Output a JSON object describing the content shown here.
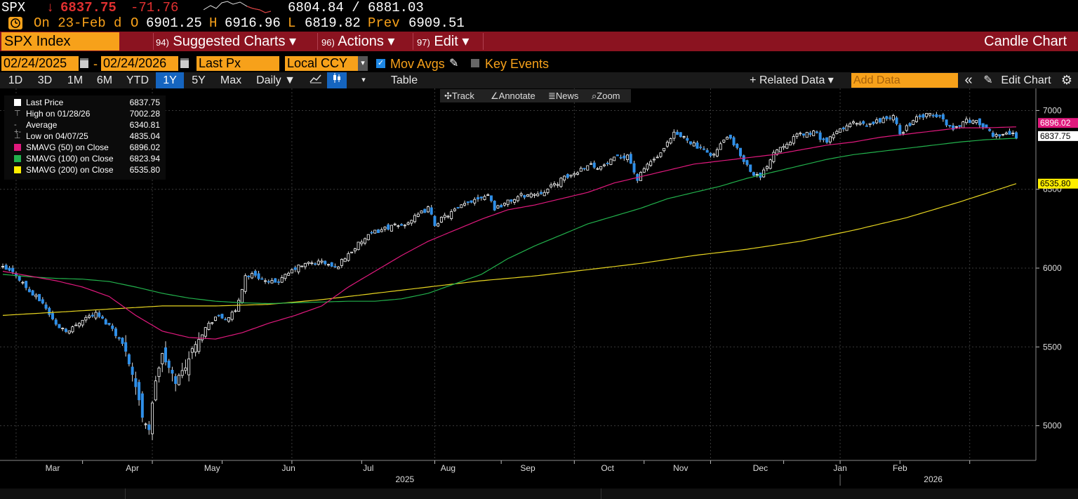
{
  "quote": {
    "ticker": "SPX",
    "last": "6837.75",
    "arrow": "↓",
    "change": "-71.76",
    "bid_ask": "6804.84 / 6881.03",
    "date_text": "On 23-Feb d",
    "open_label": "O",
    "open": "6901.25",
    "high_label": "H",
    "high": "6916.96",
    "low_label": "L",
    "low": "6819.82",
    "prev_label": "Prev",
    "prev": "6909.51"
  },
  "menubar": {
    "security": "SPX Index",
    "items": [
      {
        "num": "94)",
        "label": "Suggested Charts ▾"
      },
      {
        "num": "96)",
        "label": "Actions ▾"
      },
      {
        "num": "97)",
        "label": "Edit ▾"
      }
    ],
    "right_title": "Candle Chart"
  },
  "controls": {
    "start_date": "02/24/2025",
    "end_date": "02/24/2026",
    "dash": "-",
    "field": "Last Px",
    "currency": "Local CCY",
    "mov_avgs_label": "Mov Avgs",
    "key_events_label": "Key Events"
  },
  "toolbar": {
    "periods": [
      "1D",
      "3D",
      "1M",
      "6M",
      "YTD",
      "1Y",
      "5Y",
      "Max"
    ],
    "selected_period": "1Y",
    "frequency": "Daily ▼",
    "table_label": "Table",
    "related_data": "+ Related Data ▾",
    "add_data_placeholder": "Add Data",
    "collapse": "«",
    "edit_chart": "Edit Chart"
  },
  "chart_tools": [
    "Track",
    "Annotate",
    "News",
    "Zoom"
  ],
  "legend": [
    {
      "label": "Last Price",
      "value": "6837.75",
      "color": "#ffffff"
    },
    {
      "label": "High on 01/28/26",
      "value": "7002.28",
      "color": ""
    },
    {
      "label": "Average",
      "value": "6340.81",
      "color": ""
    },
    {
      "label": "Low on 04/07/25",
      "value": "4835.04",
      "color": ""
    },
    {
      "label": "SMAVG (50)  on Close",
      "value": "6896.02",
      "color": "#e0197d"
    },
    {
      "label": "SMAVG (100)  on Close",
      "value": "6823.94",
      "color": "#22b14c"
    },
    {
      "label": "SMAVG (200)  on Close",
      "value": "6535.80",
      "color": "#ffee00"
    }
  ],
  "chart_data": {
    "type": "candlestick",
    "y_ticks": [
      5000,
      5500,
      6000,
      6500,
      7000
    ],
    "ylim": [
      4780,
      7140
    ],
    "month_labels": [
      "Mar",
      "Apr",
      "May",
      "Jun",
      "Jul",
      "Aug",
      "Sep",
      "Oct",
      "Nov",
      "Dec",
      "Jan",
      "Feb"
    ],
    "year_labels": [
      "2025",
      "2026"
    ],
    "last_price_tag": "6837.75",
    "sma50_tag": "6896.02",
    "sma200_tag": "6535.80",
    "close_path": [
      [
        0,
        6000
      ],
      [
        4,
        5960
      ],
      [
        8,
        5850
      ],
      [
        12,
        5780
      ],
      [
        16,
        5640
      ],
      [
        20,
        5600
      ],
      [
        24,
        5680
      ],
      [
        28,
        5710
      ],
      [
        33,
        5620
      ],
      [
        37,
        5480
      ],
      [
        40,
        5250
      ],
      [
        42,
        5060
      ],
      [
        44,
        4980
      ],
      [
        46,
        5290
      ],
      [
        48,
        5450
      ],
      [
        52,
        5280
      ],
      [
        55,
        5380
      ],
      [
        58,
        5530
      ],
      [
        61,
        5620
      ],
      [
        64,
        5690
      ],
      [
        67,
        5680
      ],
      [
        70,
        5720
      ],
      [
        73,
        5950
      ],
      [
        76,
        5960
      ],
      [
        80,
        5900
      ],
      [
        84,
        5930
      ],
      [
        88,
        6000
      ],
      [
        92,
        6030
      ],
      [
        96,
        6040
      ],
      [
        100,
        6000
      ],
      [
        104,
        6090
      ],
      [
        108,
        6170
      ],
      [
        112,
        6230
      ],
      [
        116,
        6260
      ],
      [
        120,
        6270
      ],
      [
        124,
        6320
      ],
      [
        128,
        6380
      ],
      [
        130,
        6280
      ],
      [
        134,
        6340
      ],
      [
        138,
        6390
      ],
      [
        142,
        6440
      ],
      [
        146,
        6470
      ],
      [
        148,
        6380
      ],
      [
        152,
        6420
      ],
      [
        156,
        6460
      ],
      [
        160,
        6470
      ],
      [
        164,
        6500
      ],
      [
        168,
        6560
      ],
      [
        172,
        6600
      ],
      [
        176,
        6660
      ],
      [
        180,
        6640
      ],
      [
        184,
        6690
      ],
      [
        188,
        6720
      ],
      [
        191,
        6560
      ],
      [
        194,
        6660
      ],
      [
        198,
        6720
      ],
      [
        202,
        6850
      ],
      [
        206,
        6820
      ],
      [
        210,
        6750
      ],
      [
        214,
        6720
      ],
      [
        218,
        6840
      ],
      [
        222,
        6720
      ],
      [
        225,
        6620
      ],
      [
        228,
        6570
      ],
      [
        232,
        6740
      ],
      [
        236,
        6800
      ],
      [
        240,
        6850
      ],
      [
        244,
        6860
      ],
      [
        248,
        6800
      ],
      [
        252,
        6880
      ],
      [
        256,
        6920
      ],
      [
        260,
        6900
      ],
      [
        264,
        6940
      ],
      [
        268,
        6960
      ],
      [
        270,
        6850
      ],
      [
        274,
        6940
      ],
      [
        278,
        6970
      ],
      [
        282,
        6960
      ],
      [
        286,
        6880
      ],
      [
        290,
        6940
      ],
      [
        294,
        6920
      ],
      [
        298,
        6840
      ],
      [
        302,
        6860
      ],
      [
        305,
        6837.75
      ]
    ],
    "sma50_path": [
      [
        0,
        5980
      ],
      [
        8,
        5950
      ],
      [
        16,
        5920
      ],
      [
        24,
        5880
      ],
      [
        32,
        5820
      ],
      [
        40,
        5700
      ],
      [
        48,
        5600
      ],
      [
        56,
        5560
      ],
      [
        64,
        5550
      ],
      [
        72,
        5590
      ],
      [
        80,
        5650
      ],
      [
        88,
        5700
      ],
      [
        96,
        5760
      ],
      [
        104,
        5880
      ],
      [
        112,
        5980
      ],
      [
        120,
        6080
      ],
      [
        128,
        6170
      ],
      [
        136,
        6240
      ],
      [
        144,
        6310
      ],
      [
        152,
        6370
      ],
      [
        160,
        6400
      ],
      [
        168,
        6440
      ],
      [
        176,
        6480
      ],
      [
        184,
        6540
      ],
      [
        192,
        6580
      ],
      [
        200,
        6620
      ],
      [
        208,
        6660
      ],
      [
        216,
        6680
      ],
      [
        224,
        6700
      ],
      [
        232,
        6720
      ],
      [
        240,
        6750
      ],
      [
        248,
        6780
      ],
      [
        256,
        6800
      ],
      [
        264,
        6830
      ],
      [
        272,
        6850
      ],
      [
        280,
        6870
      ],
      [
        288,
        6890
      ],
      [
        296,
        6890
      ],
      [
        305,
        6896.02
      ]
    ],
    "sma100_path": [
      [
        0,
        5960
      ],
      [
        8,
        5945
      ],
      [
        16,
        5935
      ],
      [
        24,
        5930
      ],
      [
        32,
        5915
      ],
      [
        40,
        5880
      ],
      [
        48,
        5840
      ],
      [
        56,
        5810
      ],
      [
        64,
        5790
      ],
      [
        72,
        5780
      ],
      [
        80,
        5775
      ],
      [
        88,
        5780
      ],
      [
        96,
        5785
      ],
      [
        104,
        5790
      ],
      [
        112,
        5790
      ],
      [
        120,
        5805
      ],
      [
        128,
        5840
      ],
      [
        136,
        5900
      ],
      [
        144,
        5960
      ],
      [
        152,
        6060
      ],
      [
        160,
        6140
      ],
      [
        168,
        6210
      ],
      [
        176,
        6280
      ],
      [
        184,
        6330
      ],
      [
        192,
        6380
      ],
      [
        200,
        6440
      ],
      [
        208,
        6480
      ],
      [
        216,
        6520
      ],
      [
        224,
        6570
      ],
      [
        232,
        6610
      ],
      [
        240,
        6650
      ],
      [
        248,
        6690
      ],
      [
        256,
        6720
      ],
      [
        264,
        6740
      ],
      [
        272,
        6760
      ],
      [
        280,
        6780
      ],
      [
        288,
        6800
      ],
      [
        296,
        6815
      ],
      [
        305,
        6823.94
      ]
    ],
    "sma200_path": [
      [
        0,
        5700
      ],
      [
        16,
        5720
      ],
      [
        32,
        5740
      ],
      [
        48,
        5760
      ],
      [
        64,
        5760
      ],
      [
        80,
        5770
      ],
      [
        96,
        5800
      ],
      [
        112,
        5840
      ],
      [
        128,
        5880
      ],
      [
        144,
        5920
      ],
      [
        160,
        5950
      ],
      [
        176,
        5990
      ],
      [
        192,
        6030
      ],
      [
        208,
        6080
      ],
      [
        224,
        6120
      ],
      [
        240,
        6170
      ],
      [
        256,
        6240
      ],
      [
        272,
        6320
      ],
      [
        288,
        6420
      ],
      [
        305,
        6535.8
      ]
    ]
  },
  "bottom_bar": {
    "left": "",
    "right": ""
  }
}
